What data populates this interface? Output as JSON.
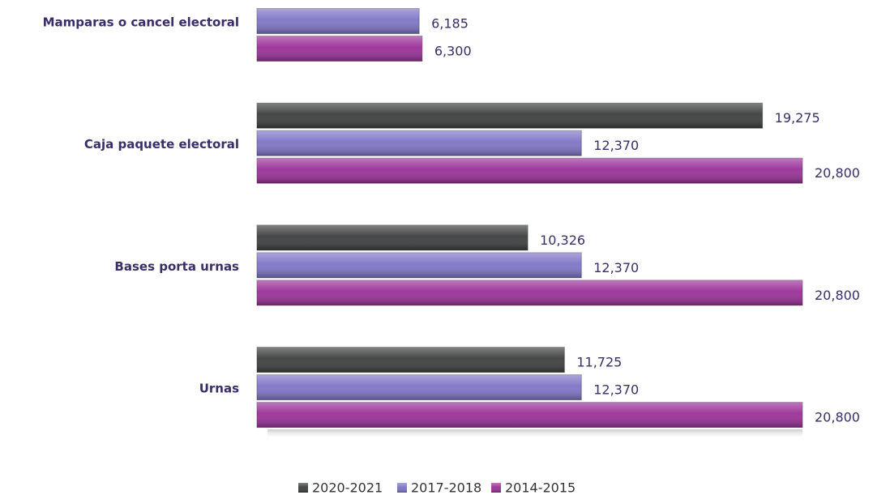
{
  "chart_data": {
    "type": "bar",
    "orientation": "horizontal",
    "categories": [
      "Mamparas o cancel electoral",
      "Caja paquete electoral",
      "Bases porta urnas",
      "Urnas"
    ],
    "series": [
      {
        "name": "2020-2021",
        "color": "#3b3e3e",
        "values": [
          null,
          19275,
          10326,
          11725
        ],
        "value_labels": [
          null,
          "19,275",
          "10,326",
          "11,725"
        ]
      },
      {
        "name": "2017-2018",
        "color": "#7d74c6",
        "values": [
          6185,
          12370,
          12370,
          12370
        ],
        "value_labels": [
          "6,185",
          "12,370",
          "12,370",
          "12,370"
        ]
      },
      {
        "name": "2014-2015",
        "color": "#9a2f98",
        "values": [
          6300,
          20800,
          20800,
          20800
        ],
        "value_labels": [
          "6,300",
          "20,800",
          "20,800",
          "20,800"
        ]
      }
    ],
    "legend": "bottom"
  }
}
